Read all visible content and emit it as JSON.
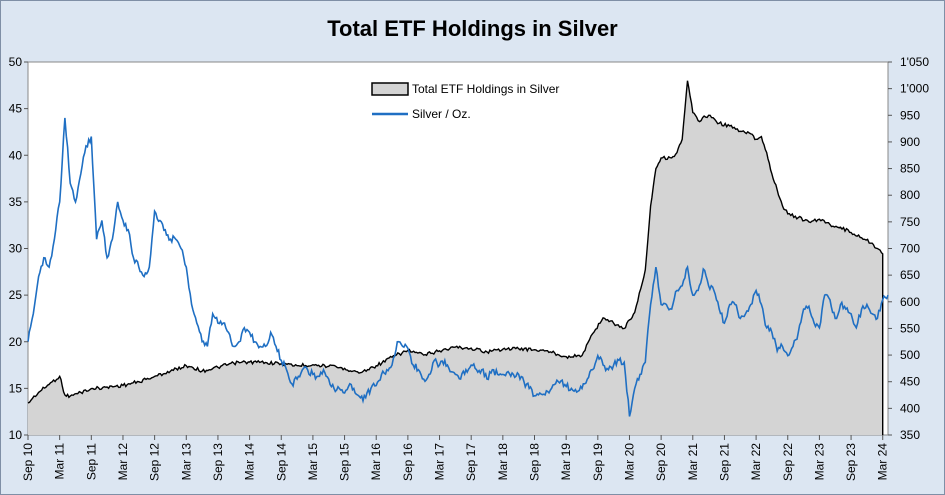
{
  "chart_data": {
    "type": "line",
    "title": "Total ETF Holdings in Silver",
    "legend_position": "top-center",
    "grid": false,
    "x_ticks": [
      "Sep 10",
      "Mar 11",
      "Sep 11",
      "Mar 12",
      "Sep 12",
      "Mar 13",
      "Sep 13",
      "Mar 14",
      "Sep 14",
      "Mar 15",
      "Sep 15",
      "Mar 16",
      "Sep 16",
      "Mar 17",
      "Sep 17",
      "Mar 18",
      "Sep 18",
      "Mar 19",
      "Sep 19",
      "Mar 20",
      "Sep 20",
      "Mar 21",
      "Sep 21",
      "Mar 22",
      "Sep 22",
      "Mar 23",
      "Sep 23",
      "Mar 24"
    ],
    "x_range": [
      "Sep 10",
      "Apr 24"
    ],
    "y_left": {
      "ylim": [
        10,
        50
      ],
      "ticks": [
        "10",
        "15",
        "20",
        "25",
        "30",
        "35",
        "40",
        "45",
        "50"
      ]
    },
    "y_right": {
      "ylim": [
        350,
        1050
      ],
      "ticks": [
        "350",
        "400",
        "450",
        "500",
        "550",
        "600",
        "650",
        "700",
        "750",
        "800",
        "850",
        "900",
        "950",
        "1'000",
        "1'050"
      ]
    },
    "series": [
      {
        "name": "Total ETF Holdings in Silver",
        "axis": "right",
        "style": "area",
        "color": "#000000",
        "fill": "#d4d4d4",
        "points": [
          [
            "Sep 10",
            410
          ],
          [
            "Nov 10",
            430
          ],
          [
            "Jan 11",
            445
          ],
          [
            "Mar 11",
            460
          ],
          [
            "Apr 11",
            425
          ],
          [
            "May 11",
            423
          ],
          [
            "Jul 11",
            430
          ],
          [
            "Sep 11",
            437
          ],
          [
            "Dec 11",
            440
          ],
          [
            "Mar 12",
            443
          ],
          [
            "Jun 12",
            450
          ],
          [
            "Sep 12",
            460
          ],
          [
            "Dec 12",
            470
          ],
          [
            "Mar 13",
            480
          ],
          [
            "Apr 13",
            478
          ],
          [
            "Jun 13",
            470
          ],
          [
            "Sep 13",
            477
          ],
          [
            "Dec 13",
            485
          ],
          [
            "Mar 14",
            487
          ],
          [
            "Jun 14",
            486
          ],
          [
            "Sep 14",
            484
          ],
          [
            "Dec 14",
            480
          ],
          [
            "Mar 15",
            482
          ],
          [
            "Jun 15",
            479
          ],
          [
            "Sep 15",
            475
          ],
          [
            "Dec 15",
            467
          ],
          [
            "Mar 16",
            480
          ],
          [
            "Jun 16",
            496
          ],
          [
            "Sep 16",
            509
          ],
          [
            "Dec 16",
            500
          ],
          [
            "Mar 17",
            508
          ],
          [
            "Jun 17",
            515
          ],
          [
            "Sep 17",
            513
          ],
          [
            "Dec 17",
            506
          ],
          [
            "Mar 18",
            511
          ],
          [
            "Jun 18",
            512
          ],
          [
            "Sep 18",
            510
          ],
          [
            "Dec 18",
            506
          ],
          [
            "Mar 19",
            497
          ],
          [
            "Jun 19",
            499
          ],
          [
            "Aug 19",
            540
          ],
          [
            "Oct 19",
            570
          ],
          [
            "Dec 19",
            560
          ],
          [
            "Feb 20",
            550
          ],
          [
            "Mar 20",
            566
          ],
          [
            "Apr 20",
            580
          ],
          [
            "Jun 20",
            660
          ],
          [
            "Jul 20",
            780
          ],
          [
            "Aug 20",
            850
          ],
          [
            "Sep 20",
            870
          ],
          [
            "Nov 20",
            870
          ],
          [
            "Dec 20",
            880
          ],
          [
            "Jan 21",
            905
          ],
          [
            "Feb 21",
            1015
          ],
          [
            "Mar 21",
            955
          ],
          [
            "Apr 21",
            940
          ],
          [
            "Jun 21",
            950
          ],
          [
            "Aug 21",
            935
          ],
          [
            "Oct 21",
            930
          ],
          [
            "Dec 21",
            920
          ],
          [
            "Feb 22",
            915
          ],
          [
            "Mar 22",
            905
          ],
          [
            "Apr 22",
            910
          ],
          [
            "May 22",
            880
          ],
          [
            "Jun 22",
            840
          ],
          [
            "Jul 22",
            810
          ],
          [
            "Aug 22",
            780
          ],
          [
            "Sep 22",
            765
          ],
          [
            "Nov 22",
            758
          ],
          [
            "Jan 23",
            750
          ],
          [
            "Mar 23",
            755
          ],
          [
            "May 23",
            745
          ],
          [
            "Jul 23",
            740
          ],
          [
            "Sep 23",
            730
          ],
          [
            "Nov 23",
            720
          ],
          [
            "Jan 24",
            710
          ],
          [
            "Feb 24",
            700
          ],
          [
            "Mar 24",
            690
          ]
        ]
      },
      {
        "name": "Silver / Oz.",
        "axis": "left",
        "style": "line",
        "color": "#1f6fc3",
        "points": [
          [
            "Sep 10",
            20
          ],
          [
            "Oct 10",
            23
          ],
          [
            "Nov 10",
            27
          ],
          [
            "Dec 10",
            29
          ],
          [
            "Jan 11",
            28
          ],
          [
            "Feb 11",
            31
          ],
          [
            "Mar 11",
            35
          ],
          [
            "Apr 11",
            44
          ],
          [
            "May 11",
            37
          ],
          [
            "Jun 11",
            35
          ],
          [
            "Jul 11",
            38
          ],
          [
            "Aug 11",
            41
          ],
          [
            "Sep 11",
            42
          ],
          [
            "Oct 11",
            31
          ],
          [
            "Nov 11",
            33
          ],
          [
            "Dec 11",
            29
          ],
          [
            "Jan 12",
            31
          ],
          [
            "Feb 12",
            35
          ],
          [
            "Mar 12",
            33
          ],
          [
            "Apr 12",
            32
          ],
          [
            "May 12",
            29
          ],
          [
            "Jun 12",
            28
          ],
          [
            "Jul 12",
            27
          ],
          [
            "Aug 12",
            28
          ],
          [
            "Sep 12",
            34
          ],
          [
            "Oct 12",
            33
          ],
          [
            "Nov 12",
            32
          ],
          [
            "Dec 12",
            31
          ],
          [
            "Jan 13",
            31
          ],
          [
            "Feb 13",
            30
          ],
          [
            "Mar 13",
            28
          ],
          [
            "Apr 13",
            24
          ],
          [
            "May 13",
            22
          ],
          [
            "Jun 13",
            20
          ],
          [
            "Jul 13",
            19.5
          ],
          [
            "Aug 13",
            23
          ],
          [
            "Sep 13",
            22
          ],
          [
            "Oct 13",
            22
          ],
          [
            "Nov 13",
            21
          ],
          [
            "Dec 13",
            19.5
          ],
          [
            "Jan 14",
            20
          ],
          [
            "Feb 14",
            21.5
          ],
          [
            "Mar 14",
            21
          ],
          [
            "Apr 14",
            20
          ],
          [
            "May 14",
            19.5
          ],
          [
            "Jun 14",
            19.5
          ],
          [
            "Jul 14",
            21
          ],
          [
            "Aug 14",
            19.5
          ],
          [
            "Sep 14",
            18
          ],
          [
            "Oct 14",
            17
          ],
          [
            "Nov 14",
            15.5
          ],
          [
            "Dec 14",
            16
          ],
          [
            "Jan 15",
            17
          ],
          [
            "Feb 15",
            17
          ],
          [
            "Mar 15",
            16.5
          ],
          [
            "Apr 15",
            16.3
          ],
          [
            "May 15",
            17
          ],
          [
            "Jun 15",
            16
          ],
          [
            "Jul 15",
            15
          ],
          [
            "Aug 15",
            15
          ],
          [
            "Sep 15",
            14.5
          ],
          [
            "Oct 15",
            15.5
          ],
          [
            "Nov 15",
            14.5
          ],
          [
            "Dec 15",
            14
          ],
          [
            "Jan 16",
            14
          ],
          [
            "Feb 16",
            15
          ],
          [
            "Mar 16",
            15.3
          ],
          [
            "Apr 16",
            16.5
          ],
          [
            "May 16",
            17
          ],
          [
            "Jun 16",
            17.5
          ],
          [
            "Jul 16",
            20
          ],
          [
            "Aug 16",
            19.5
          ],
          [
            "Sep 16",
            19.3
          ],
          [
            "Oct 16",
            17.5
          ],
          [
            "Nov 16",
            17
          ],
          [
            "Dec 16",
            16
          ],
          [
            "Jan 17",
            16.5
          ],
          [
            "Feb 17",
            18
          ],
          [
            "Mar 17",
            17.5
          ],
          [
            "Apr 17",
            18
          ],
          [
            "May 17",
            16.8
          ],
          [
            "Jun 17",
            16.5
          ],
          [
            "Jul 17",
            16
          ],
          [
            "Aug 17",
            17
          ],
          [
            "Sep 17",
            17.5
          ],
          [
            "Oct 17",
            17
          ],
          [
            "Nov 17",
            17
          ],
          [
            "Dec 17",
            16
          ],
          [
            "Jan 18",
            17
          ],
          [
            "Feb 18",
            16.5
          ],
          [
            "Mar 18",
            16.5
          ],
          [
            "Apr 18",
            16.8
          ],
          [
            "May 18",
            16.5
          ],
          [
            "Jun 18",
            16.5
          ],
          [
            "Jul 18",
            15.7
          ],
          [
            "Aug 18",
            15
          ],
          [
            "Sep 18",
            14.2
          ],
          [
            "Oct 18",
            14.5
          ],
          [
            "Nov 18",
            14.3
          ],
          [
            "Dec 18",
            14.8
          ],
          [
            "Jan 19",
            15.5
          ],
          [
            "Feb 19",
            15.8
          ],
          [
            "Mar 19",
            15.2
          ],
          [
            "Apr 19",
            15
          ],
          [
            "May 19",
            14.6
          ],
          [
            "Jun 19",
            15
          ],
          [
            "Jul 19",
            16
          ],
          [
            "Aug 19",
            17
          ],
          [
            "Sep 19",
            18.5
          ],
          [
            "Oct 19",
            17.5
          ],
          [
            "Nov 19",
            17
          ],
          [
            "Dec 19",
            17.5
          ],
          [
            "Jan 20",
            18
          ],
          [
            "Feb 20",
            17.8
          ],
          [
            "Mar 20",
            12
          ],
          [
            "Apr 20",
            15
          ],
          [
            "May 20",
            16.5
          ],
          [
            "Jun 20",
            17.8
          ],
          [
            "Jul 20",
            24
          ],
          [
            "Aug 20",
            28
          ],
          [
            "Sep 20",
            24
          ],
          [
            "Oct 20",
            24
          ],
          [
            "Nov 20",
            23.5
          ],
          [
            "Dec 20",
            25.5
          ],
          [
            "Jan 21",
            26
          ],
          [
            "Feb 21",
            28
          ],
          [
            "Mar 21",
            25
          ],
          [
            "Apr 21",
            25.5
          ],
          [
            "May 21",
            27.8
          ],
          [
            "Jun 21",
            26
          ],
          [
            "Jul 21",
            25.5
          ],
          [
            "Aug 21",
            23.5
          ],
          [
            "Sep 21",
            22
          ],
          [
            "Oct 21",
            24
          ],
          [
            "Nov 21",
            24
          ],
          [
            "Dec 21",
            22.5
          ],
          [
            "Jan 22",
            23
          ],
          [
            "Feb 22",
            24
          ],
          [
            "Mar 22",
            25.5
          ],
          [
            "Apr 22",
            24
          ],
          [
            "May 22",
            21.5
          ],
          [
            "Jun 22",
            21
          ],
          [
            "Jul 22",
            19
          ],
          [
            "Aug 22",
            19.5
          ],
          [
            "Sep 22",
            18.5
          ],
          [
            "Oct 22",
            19.5
          ],
          [
            "Nov 22",
            21
          ],
          [
            "Dec 22",
            23.5
          ],
          [
            "Jan 23",
            23.8
          ],
          [
            "Feb 23",
            22
          ],
          [
            "Mar 23",
            21.5
          ],
          [
            "Apr 23",
            25
          ],
          [
            "May 23",
            24.5
          ],
          [
            "Jun 23",
            22.5
          ],
          [
            "Jul 23",
            24
          ],
          [
            "Aug 23",
            23.5
          ],
          [
            "Sep 23",
            23
          ],
          [
            "Oct 23",
            21.5
          ],
          [
            "Nov 23",
            23.5
          ],
          [
            "Dec 23",
            24
          ],
          [
            "Jan 24",
            23
          ],
          [
            "Feb 24",
            22.5
          ],
          [
            "Mar 24",
            24.5
          ],
          [
            "Apr 24",
            25
          ]
        ]
      }
    ]
  }
}
